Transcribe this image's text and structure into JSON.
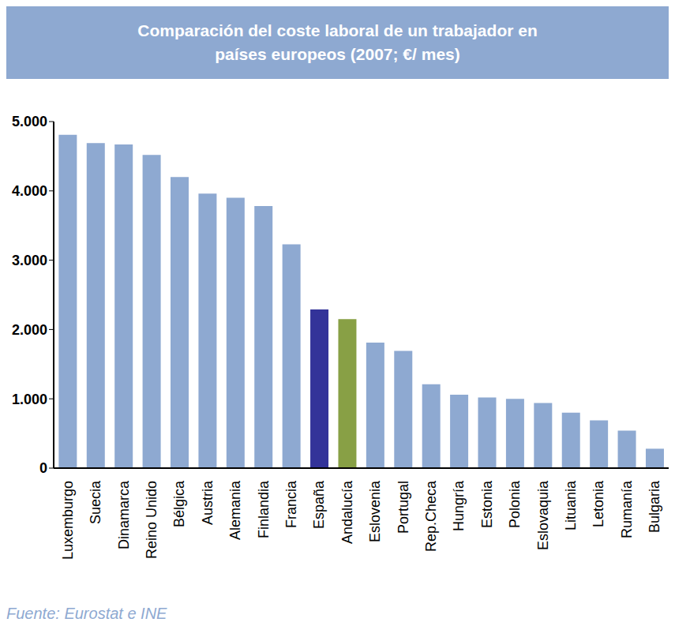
{
  "chart_data": {
    "type": "bar",
    "title": "Comparación del coste laboral de un trabajador en\npaíses europeos (2007;  €/ mes)",
    "source": "Fuente: Eurostat e INE",
    "categories": [
      "Luxemburgo",
      "Suecia",
      "Dinamarca",
      "Reino Unido",
      "Bélgica",
      "Austria",
      "Alemania",
      "Finlandia",
      "Francia",
      "España",
      "Andalucía",
      "Eslovenia",
      "Portugal",
      "Rep.Checa",
      "Hungría",
      "Estonia",
      "Polonia",
      "Eslovaquia",
      "Lituania",
      "Letonia",
      "Rumanía",
      "Bulgaria"
    ],
    "values": [
      4810,
      4690,
      4670,
      4520,
      4200,
      3960,
      3900,
      3780,
      3230,
      2290,
      2150,
      1810,
      1690,
      1210,
      1060,
      1020,
      1000,
      940,
      800,
      690,
      540,
      280
    ],
    "colors": [
      "#8ea9d1",
      "#8ea9d1",
      "#8ea9d1",
      "#8ea9d1",
      "#8ea9d1",
      "#8ea9d1",
      "#8ea9d1",
      "#8ea9d1",
      "#8ea9d1",
      "#333399",
      "#88a045",
      "#8ea9d1",
      "#8ea9d1",
      "#8ea9d1",
      "#8ea9d1",
      "#8ea9d1",
      "#8ea9d1",
      "#8ea9d1",
      "#8ea9d1",
      "#8ea9d1",
      "#8ea9d1",
      "#8ea9d1"
    ],
    "ylim": [
      0,
      5000
    ],
    "yticks": [
      0,
      {
        "value": 1000,
        "label": "1.000"
      },
      {
        "value": 2000,
        "label": "2.000"
      },
      {
        "value": 3000,
        "label": "3.000"
      },
      {
        "value": 4000,
        "label": "4.000"
      },
      {
        "value": 5000,
        "label": "5.000"
      }
    ],
    "grid": false
  }
}
